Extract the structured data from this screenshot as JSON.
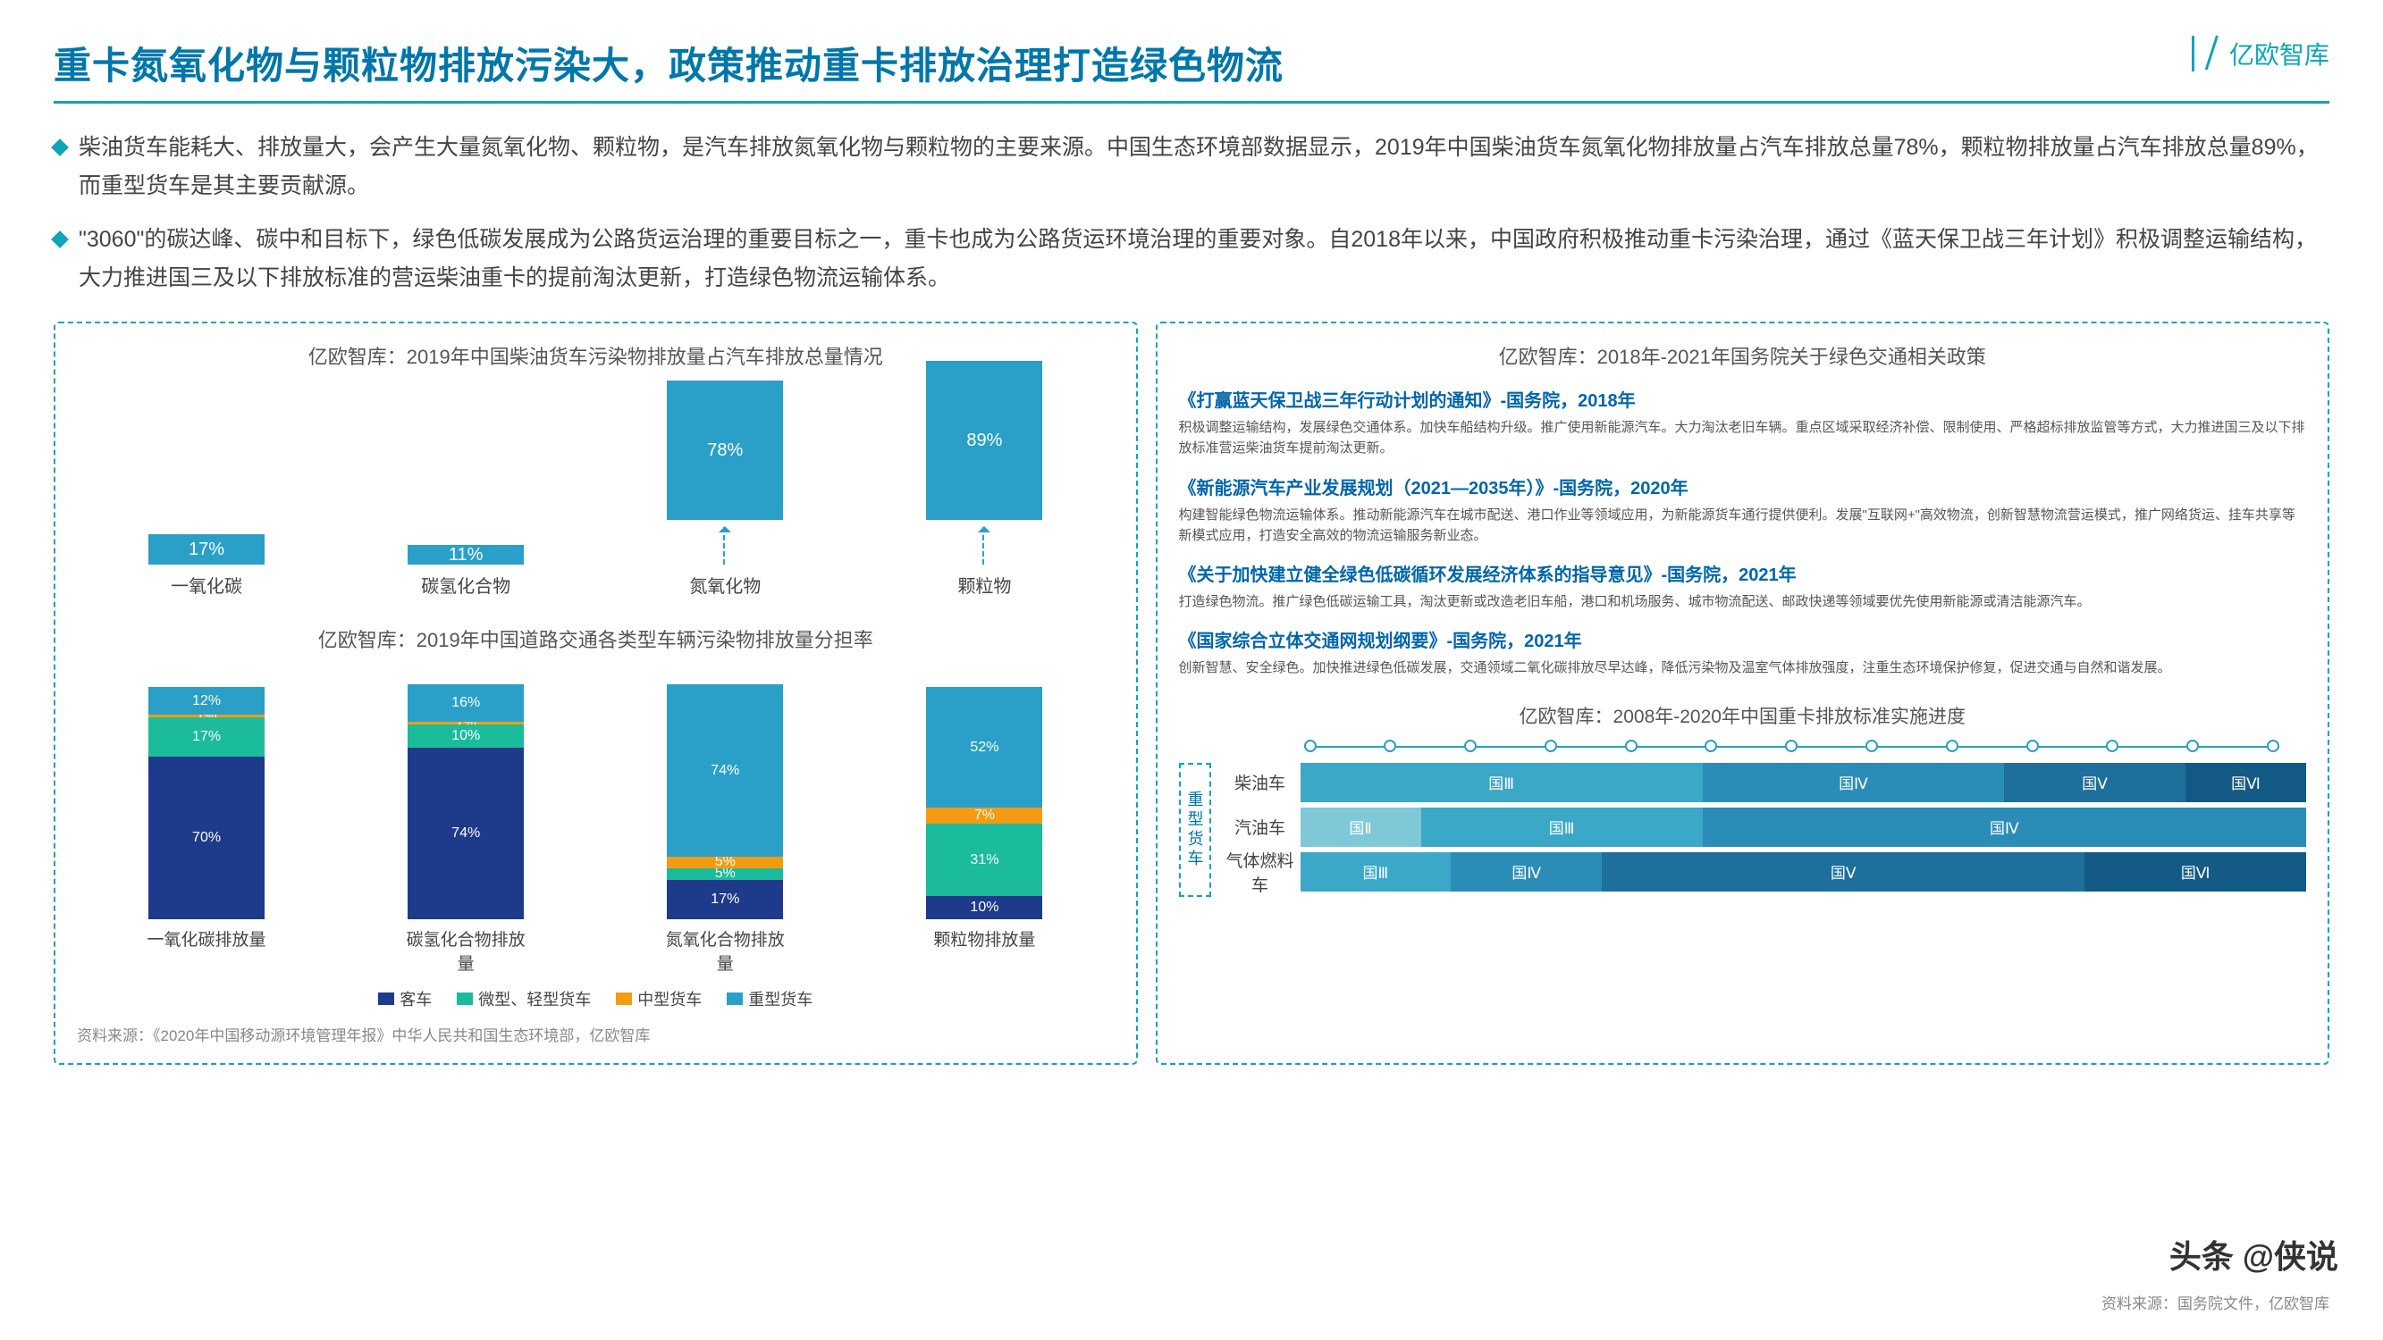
{
  "header": {
    "title": "重卡氮氧化物与颗粒物排放污染大，政策推动重卡排放治理打造绿色物流",
    "logo": "亿欧智库"
  },
  "bullets": [
    "柴油货车能耗大、排放量大，会产生大量氮氧化物、颗粒物，是汽车排放氮氧化物与颗粒物的主要来源。中国生态环境部数据显示，2019年中国柴油货车氮氧化物排放量占汽车排放总量78%，颗粒物排放量占汽车排放总量89%，而重型货车是其主要贡献源。",
    "\"3060\"的碳达峰、碳中和目标下，绿色低碳发展成为公路货运治理的重要目标之一，重卡也成为公路货运环境治理的重要对象。自2018年以来，中国政府积极推动重卡污染治理，通过《蓝天保卫战三年计划》积极调整运输结构，大力推进国三及以下排放标准的营运柴油重卡的提前淘汰更新，打造绿色物流运输体系。"
  ],
  "colors": {
    "c_bus": "#1e3a8a",
    "c_light": "#1abc9c",
    "c_med": "#f39c12",
    "c_heavy": "#2aa0c8",
    "tl1": "#7ec8d8",
    "tl2": "#3ba8c8",
    "tl3": "#2a8db8",
    "tl4": "#1e6f9c",
    "tl5": "#145a86"
  },
  "chart1": {
    "title": "亿欧智库：2019年中国柴油货车污染物排放量占汽车排放总量情况",
    "labels": [
      "一氧化碳",
      "碳氢化合物",
      "氮氧化物",
      "颗粒物"
    ],
    "values": [
      17,
      11,
      78,
      89
    ]
  },
  "chart2": {
    "title": "亿欧智库：2019年中国道路交通各类型车辆污染物排放量分担率",
    "labels": [
      "一氧化碳排放量",
      "碳氢化合物排放量",
      "氮氧化合物排放量",
      "颗粒物排放量"
    ],
    "series": [
      {
        "bus": 70,
        "light": 17,
        "med": 1,
        "heavy": 12
      },
      {
        "bus": 74,
        "light": 10,
        "med": 1,
        "heavy": 16
      },
      {
        "bus": 17,
        "light": 5,
        "med": 5,
        "heavy": 74
      },
      {
        "bus": 10,
        "light": 31,
        "med": 7,
        "heavy": 52
      }
    ],
    "legend": [
      "客车",
      "微型、轻型货车",
      "中型货车",
      "重型货车"
    ]
  },
  "policies": {
    "title": "亿欧智库：2018年-2021年国务院关于绿色交通相关政策",
    "items": [
      {
        "t": "《打赢蓝天保卫战三年行动计划的通知》-国务院，2018年",
        "d": "积极调整运输结构，发展绿色交通体系。加快车船结构升级。推广使用新能源汽车。大力淘汰老旧车辆。重点区域采取经济补偿、限制使用、严格超标排放监管等方式，大力推进国三及以下排放标准营运柴油货车提前淘汰更新。"
      },
      {
        "t": "《新能源汽车产业发展规划（2021—2035年）》-国务院，2020年",
        "d": "构建智能绿色物流运输体系。推动新能源汽车在城市配送、港口作业等领域应用，为新能源货车通行提供便利。发展\"互联网+\"高效物流，创新智慧物流营运模式，推广网络货运、挂车共享等新模式应用，打造安全高效的物流运输服务新业态。"
      },
      {
        "t": "《关于加快建立健全绿色低碳循环发展经济体系的指导意见》-国务院，2021年",
        "d": "打造绿色物流。推广绿色低碳运输工具，淘汰更新或改造老旧车船，港口和机场服务、城市物流配送、邮政快递等领域要优先使用新能源或清洁能源汽车。"
      },
      {
        "t": "《国家综合立体交通网规划纲要》-国务院，2021年",
        "d": "创新智慧、安全绿色。加快推进绿色低碳发展，交通领域二氧化碳排放尽早达峰，降低污染物及温室气体排放强度，注重生态环境保护修复，促进交通与自然和谐发展。"
      }
    ]
  },
  "timeline": {
    "title": "亿欧智库：2008年-2020年中国重卡排放标准实施进度",
    "vlabel": "重型货车",
    "rows": [
      {
        "label": "柴油车",
        "bars": [
          {
            "w": 40,
            "t": "国Ⅲ",
            "c": "tl2"
          },
          {
            "w": 30,
            "t": "国Ⅳ",
            "c": "tl3"
          },
          {
            "w": 18,
            "t": "国Ⅴ",
            "c": "tl4"
          },
          {
            "w": 12,
            "t": "国Ⅵ",
            "c": "tl5"
          }
        ]
      },
      {
        "label": "汽油车",
        "bars": [
          {
            "w": 12,
            "t": "国Ⅱ",
            "c": "tl1"
          },
          {
            "w": 28,
            "t": "国Ⅲ",
            "c": "tl2"
          },
          {
            "w": 60,
            "t": "国Ⅳ",
            "c": "tl3"
          }
        ]
      },
      {
        "label": "气体燃料车",
        "bars": [
          {
            "w": 15,
            "t": "国Ⅲ",
            "c": "tl2"
          },
          {
            "w": 15,
            "t": "国Ⅳ",
            "c": "tl3"
          },
          {
            "w": 48,
            "t": "国Ⅴ",
            "c": "tl4"
          },
          {
            "w": 22,
            "t": "国Ⅵ",
            "c": "tl5"
          }
        ]
      }
    ]
  },
  "source_left": "资料来源：《2020年中国移动源环境管理年报》中华人民共和国生态环境部，亿欧智库",
  "source_right": "资料来源：国务院文件，亿欧智库",
  "watermark": "头条 @侠说"
}
